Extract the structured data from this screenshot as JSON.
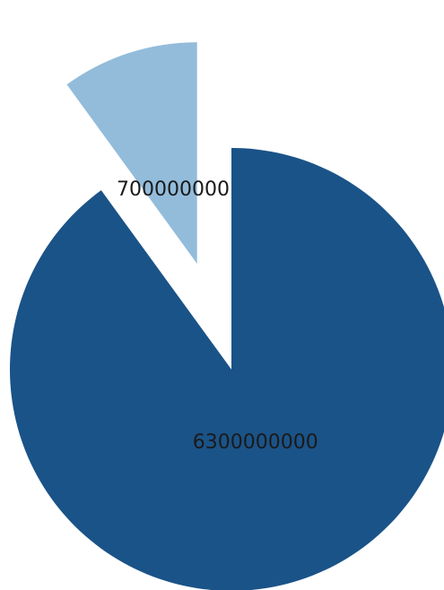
{
  "chart_data": {
    "type": "pie",
    "start_angle_deg": 0,
    "direction": "clockwise",
    "slices": [
      {
        "value": 6300000000,
        "label": "6300000000",
        "color": "#1a5388",
        "exploded": false
      },
      {
        "value": 700000000,
        "label": "700000000",
        "color": "#93bcdb",
        "exploded": true
      }
    ],
    "legend": "none",
    "title": ""
  }
}
